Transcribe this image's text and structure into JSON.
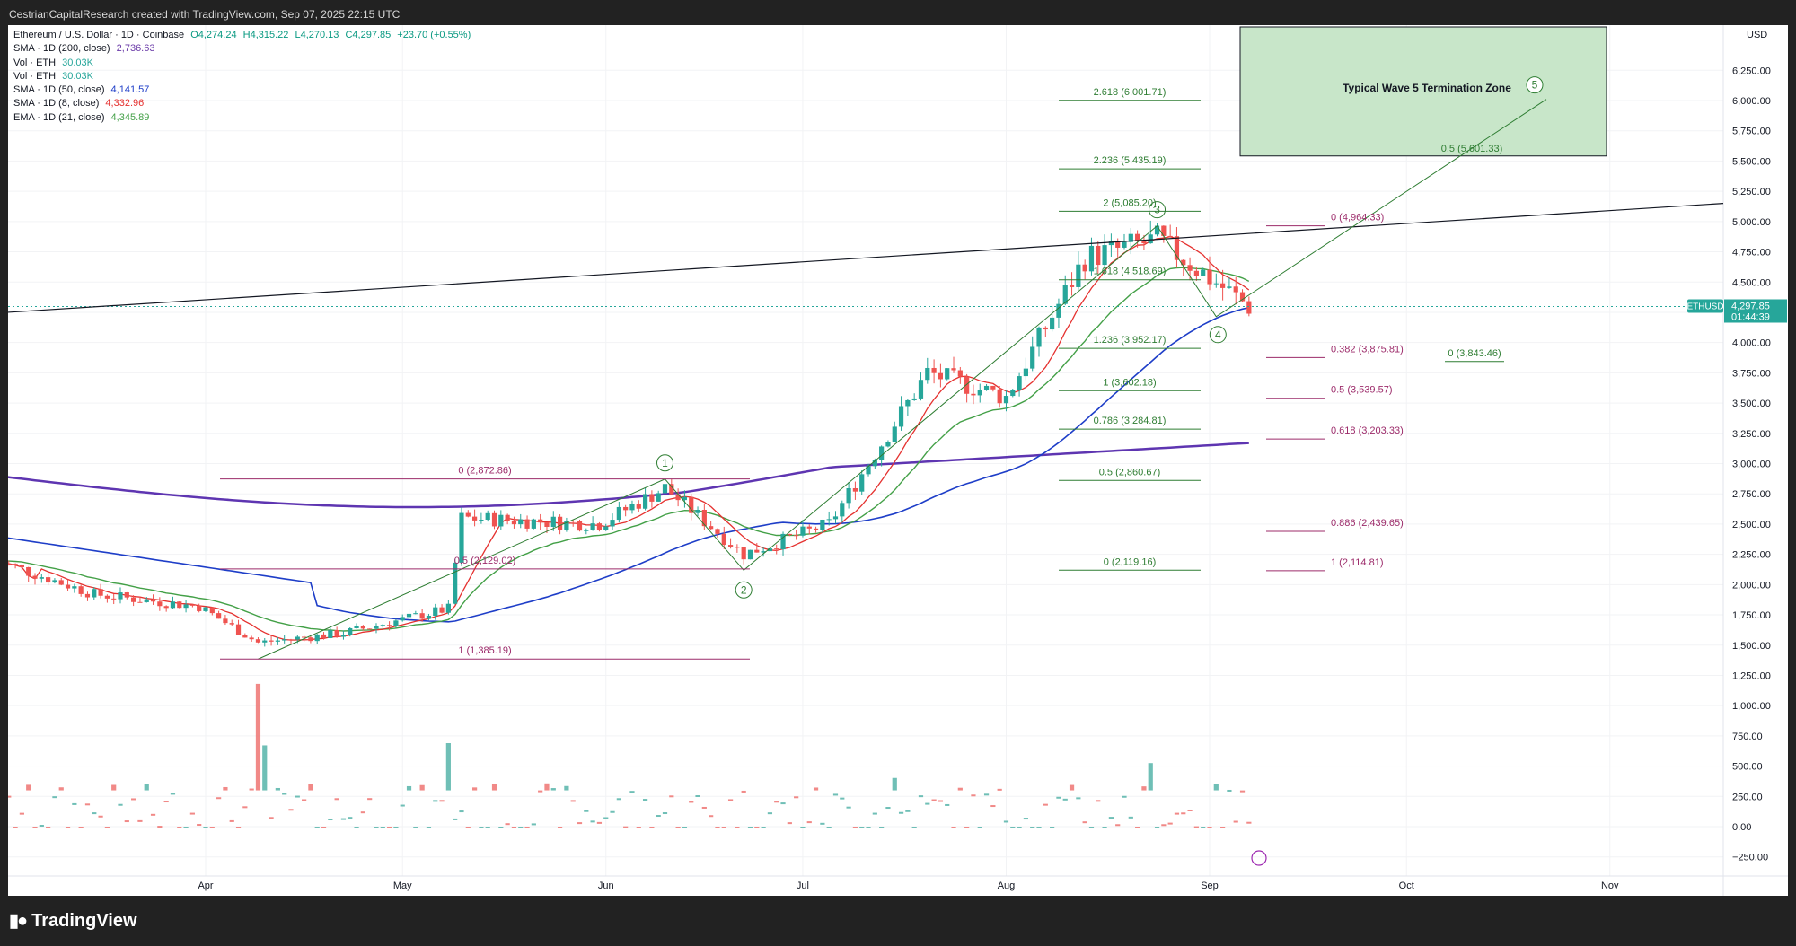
{
  "header": {
    "attribution": "CestrianCapitalResearch created with TradingView.com, Sep 07, 2025 22:15 UTC"
  },
  "legend": {
    "symbol": "Ethereum / U.S. Dollar · 1D · Coinbase",
    "open": "O4,274.24",
    "high": "H4,315.22",
    "low": "L4,270.13",
    "close": "C4,297.85",
    "change": "+23.70 (+0.55%)",
    "indicators": [
      {
        "label": "SMA · 1D (200, close)",
        "value": "2,736.63",
        "color": "#6a3aa8"
      },
      {
        "label": "Vol · ETH",
        "value": "30.03K",
        "color": "#26a69a"
      },
      {
        "label": "Vol · ETH",
        "value": "30.03K",
        "color": "#26a69a"
      },
      {
        "label": "SMA · 1D (50, close)",
        "value": "4,141.57",
        "color": "#1e3ec8"
      },
      {
        "label": "SMA · 1D (8, close)",
        "value": "4,332.96",
        "color": "#e5312f"
      },
      {
        "label": "EMA · 1D (21, close)",
        "value": "4,345.89",
        "color": "#43a047"
      }
    ]
  },
  "colors": {
    "up": "#26a69a",
    "down": "#ef5350",
    "vol_up": "#5fb8ae",
    "vol_down": "#f07c7a",
    "sma200": "#5e35b1",
    "sma50": "#1e3ec8",
    "sma8": "#e5312f",
    "ema21": "#43a047",
    "fib_red": "#9c2b6a",
    "fib_green": "#2e7d32",
    "zone_fill": "#c8e6c9",
    "price_tag": "#26a69a"
  },
  "axis": {
    "currency": "USD",
    "symbol_tag": "ETHUSD",
    "price_tag": "4,297.85",
    "countdown": "01:44:39"
  },
  "annotations": {
    "zone_label": "Typical Wave 5 Termination Zone",
    "waves": [
      "1",
      "2",
      "3",
      "4",
      "5"
    ],
    "fib_left": [
      {
        "label": "0 (2,872.86)",
        "price": 2872.86
      },
      {
        "label": "0.5 (2,129.02)",
        "price": 2129.02
      },
      {
        "label": "1 (1,385.19)",
        "price": 1385.19
      }
    ],
    "fib_mid": [
      {
        "label": "2.618 (6,001.71)",
        "price": 6001.71
      },
      {
        "label": "2.236 (5,435.19)",
        "price": 5435.19
      },
      {
        "label": "2 (5,085.20)",
        "price": 5085.2
      },
      {
        "label": "1.618 (4,518.69)",
        "price": 4518.69
      },
      {
        "label": "1.236 (3,952.17)",
        "price": 3952.17
      },
      {
        "label": "1 (3,602.18)",
        "price": 3602.18
      },
      {
        "label": "0.786 (3,284.81)",
        "price": 3284.81
      },
      {
        "label": "0.5 (2,860.67)",
        "price": 2860.67
      },
      {
        "label": "0 (2,119.16)",
        "price": 2119.16
      }
    ],
    "fib_right": [
      {
        "label": "0 (4,964.33)",
        "price": 4964.33
      },
      {
        "label": "0.382 (3,875.81)",
        "price": 3875.81
      },
      {
        "label": "0.5 (3,539.57)",
        "price": 3539.57
      },
      {
        "label": "0.618 (3,203.33)",
        "price": 3203.33
      },
      {
        "label": "0.886 (2,439.65)",
        "price": 2439.65
      },
      {
        "label": "1 (2,114.81)",
        "price": 2114.81
      }
    ],
    "fib_far": [
      {
        "label": "0.5 (5,601.33)",
        "price": 5601.33
      },
      {
        "label": "0 (3,843.46)",
        "price": 3843.46
      }
    ]
  },
  "chart_data": {
    "type": "candlestick",
    "title": "Ethereum / U.S. Dollar · 1D · Coinbase",
    "x_axis_labels": [
      "Apr",
      "May",
      "Jun",
      "Jul",
      "Aug",
      "Sep",
      "Oct",
      "Nov"
    ],
    "y_axis_labels": [
      "6,250.00",
      "6,000.00",
      "5,750.00",
      "5,500.00",
      "5,250.00",
      "5,000.00",
      "4,750.00",
      "4,500.00",
      "4,250.00",
      "4,000.00",
      "3,750.00",
      "3,500.00",
      "3,250.00",
      "3,000.00",
      "2,750.00",
      "2,500.00",
      "2,250.00",
      "2,000.00",
      "1,750.00",
      "1,500.00",
      "1,250.00",
      "1,000.00",
      "750.00",
      "500.00",
      "250.00",
      "0.00",
      "−250.00"
    ],
    "ylim": [
      -350,
      6350
    ],
    "approx_close_path": [
      {
        "date": "2025-02-28",
        "close": 2200
      },
      {
        "date": "2025-03-15",
        "close": 1920
      },
      {
        "date": "2025-03-31",
        "close": 1820
      },
      {
        "date": "2025-04-09",
        "close": 1520
      },
      {
        "date": "2025-04-22",
        "close": 1600
      },
      {
        "date": "2025-05-08",
        "close": 1800
      },
      {
        "date": "2025-05-10",
        "close": 2550
      },
      {
        "date": "2025-05-31",
        "close": 2500
      },
      {
        "date": "2025-06-10",
        "close": 2800
      },
      {
        "date": "2025-06-22",
        "close": 2250
      },
      {
        "date": "2025-07-05",
        "close": 2500
      },
      {
        "date": "2025-07-20",
        "close": 3750
      },
      {
        "date": "2025-08-01",
        "close": 3550
      },
      {
        "date": "2025-08-13",
        "close": 4700
      },
      {
        "date": "2025-08-24",
        "close": 4850
      },
      {
        "date": "2025-09-07",
        "close": 4297.85
      }
    ],
    "legend_values": {
      "SMA 200": 2736.63,
      "SMA 50": 4141.57,
      "SMA 8": 4332.96,
      "EMA 21": 4345.89,
      "Volume": "30.03K"
    }
  }
}
